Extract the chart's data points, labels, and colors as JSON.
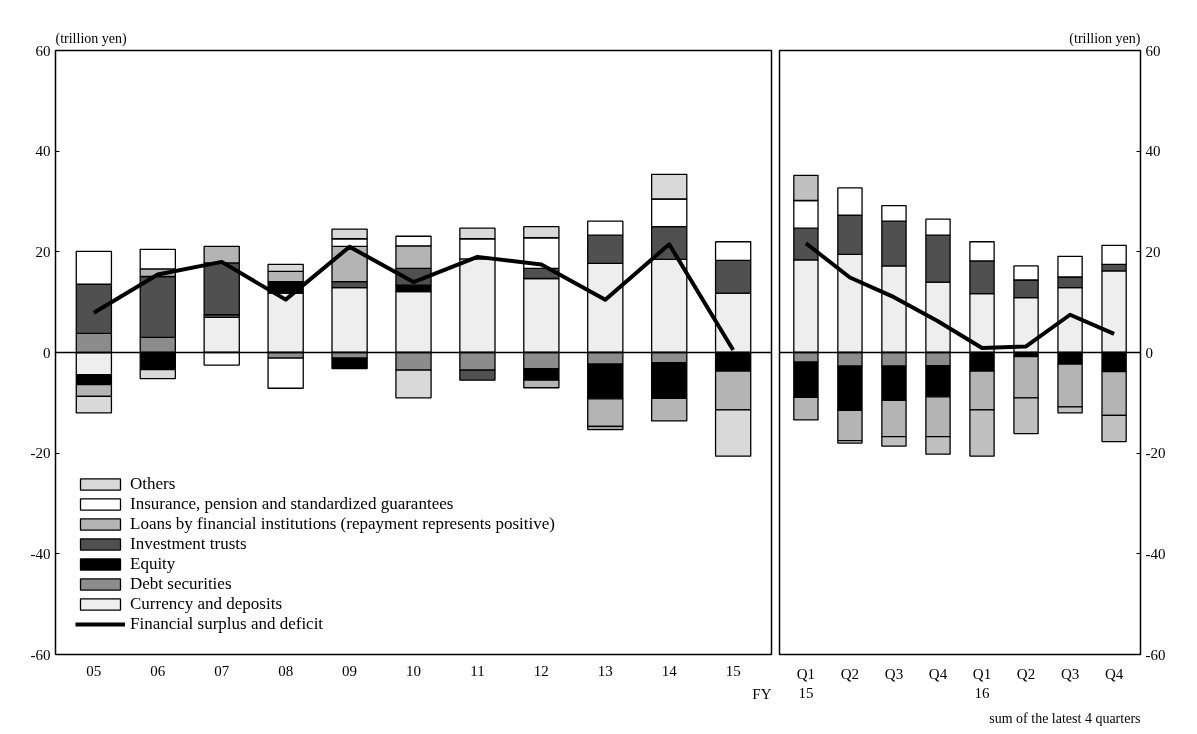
{
  "chart_data": [
    {
      "type": "bar",
      "stacked": true,
      "ylabel": "(trillion yen)",
      "xlabel": "FY",
      "categories": [
        "05",
        "06",
        "07",
        "08",
        "09",
        "10",
        "11",
        "12",
        "13",
        "14",
        "15"
      ],
      "ylim": [
        -60,
        60
      ],
      "yticks": [
        -60,
        -40,
        -20,
        0,
        20,
        40,
        60
      ],
      "legend": "bottom left",
      "grid": false,
      "ref_lines": [
        {
          "axis": "y",
          "value": 0,
          "color": "#000000"
        }
      ],
      "series": [
        {
          "name": "Currency and deposits",
          "color": "#eeeeee",
          "values": [
            -4.4,
            null,
            7.0,
            11.8,
            12.9,
            12.1,
            18.6,
            14.7,
            17.7,
            18.5,
            11.8
          ]
        },
        {
          "name": "Debt securities",
          "color": "#8c8c8c",
          "values": [
            3.8,
            3.0,
            0.5,
            -1.1,
            -1.1,
            -3.5,
            -3.5,
            -3.2,
            -2.3,
            -2.0,
            null
          ]
        },
        {
          "name": "Equity",
          "color": "#000000",
          "values": [
            -2.0,
            -3.4,
            null,
            2.3,
            -2.1,
            1.3,
            null,
            -2.3,
            -6.9,
            -7.1,
            -3.7
          ]
        },
        {
          "name": "Investment trusts",
          "color": "#505050",
          "values": [
            9.8,
            12.1,
            10.3,
            null,
            1.2,
            3.3,
            -2.0,
            2.0,
            5.6,
            6.5,
            6.5
          ]
        },
        {
          "name": "Loans by financial institutions (repayment represents positive)",
          "color": "#b4b4b4",
          "values": [
            -2.3,
            1.5,
            3.3,
            2.0,
            7.0,
            4.5,
            null,
            -1.5,
            -5.5,
            -4.5,
            -7.7
          ]
        },
        {
          "name": "Insurance, pension and standardized guarantees",
          "color": "#ffffff",
          "values": [
            6.5,
            3.9,
            -2.5,
            -6.0,
            1.5,
            1.9,
            4.0,
            6.1,
            2.8,
            5.5,
            3.7
          ]
        },
        {
          "name": "Others",
          "color": "#d9d9d9",
          "values": [
            -3.3,
            -1.8,
            null,
            1.4,
            1.9,
            -5.5,
            2.1,
            2.2,
            -0.6,
            4.9,
            -9.2
          ]
        },
        {
          "name": "Financial surplus and deficit",
          "type": "line",
          "color": "#000000",
          "values": [
            7.9,
            15.5,
            18,
            10.5,
            21,
            14,
            19,
            17.5,
            10.5,
            21.5,
            0.5
          ]
        }
      ]
    },
    {
      "type": "bar",
      "stacked": true,
      "ylabel": "(trillion yen)",
      "y2lim": [
        -60,
        60
      ],
      "y2ticks": [
        -60,
        -40,
        -20,
        0,
        20,
        40,
        60
      ],
      "categories": [
        "Q1\n15",
        "Q2",
        "Q3",
        "Q4",
        "Q1\n16",
        "Q2",
        "Q3",
        "Q4"
      ],
      "annotations": [
        "sum of the latest 4 quarters"
      ],
      "legend": false,
      "grid": false,
      "ref_lines": [
        {
          "axis": "y2",
          "value": 0,
          "color": "#000000"
        }
      ],
      "series": [
        {
          "color": "#eeeeee",
          "axis": "y2",
          "values": [
            18.4,
            19.5,
            17.2,
            14.0,
            11.7,
            10.9,
            12.9,
            16.2
          ]
        },
        {
          "color": "#8c8c8c",
          "axis": "y2",
          "values": [
            -1.9,
            -2.7,
            -2.7,
            -2.6,
            null,
            null,
            null,
            null
          ]
        },
        {
          "color": "#000000",
          "axis": "y2",
          "values": [
            -7.0,
            -8.8,
            -6.8,
            -6.2,
            -3.7,
            -0.8,
            -2.3,
            -3.8
          ]
        },
        {
          "color": "#505050",
          "axis": "y2",
          "values": [
            6.3,
            7.8,
            8.9,
            9.3,
            6.5,
            3.5,
            2.1,
            1.3
          ]
        },
        {
          "color": "#b4b4b4",
          "axis": "y2",
          "values": [
            -4.5,
            -6.0,
            -7.2,
            -7.9,
            -7.7,
            -8.2,
            -8.5,
            -8.7
          ]
        },
        {
          "color": "#ffffff",
          "axis": "y2",
          "values": [
            5.5,
            5.4,
            3.1,
            3.2,
            3.8,
            2.8,
            4.1,
            3.8
          ]
        },
        {
          "color": "#c0c0c0",
          "axis": "y2",
          "values": [
            5.0,
            -0.5,
            -1.9,
            -3.5,
            -9.2,
            -7.1,
            -1.2,
            -5.2
          ]
        },
        {
          "type": "line",
          "color": "#000000",
          "axis": "y2",
          "values": [
            21.7,
            14.9,
            11,
            6.2,
            0.9,
            1.2,
            7.5,
            3.7
          ]
        }
      ]
    }
  ]
}
